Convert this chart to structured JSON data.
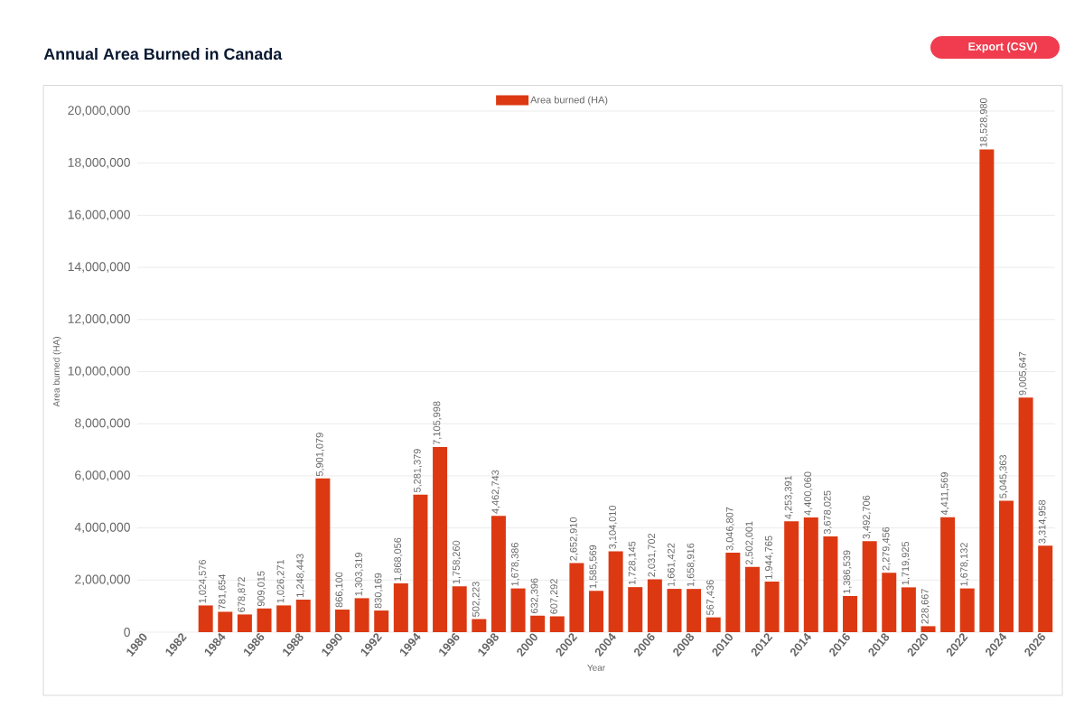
{
  "chart_data": {
    "type": "bar",
    "title": "Annual Area Burned in Canada",
    "xlabel": "Year",
    "ylabel": "Area burned (HA)",
    "annotations": [
      "Export (CSV)"
    ],
    "categories": [
      "1980",
      null,
      "1982",
      null,
      "1984",
      null,
      "1986",
      null,
      "1988",
      null,
      "1990",
      null,
      "1992",
      null,
      "1994",
      null,
      "1996",
      null,
      "1998",
      null,
      "2000",
      null,
      "2002",
      null,
      "2004",
      null,
      "2006",
      null,
      "2008",
      null,
      "2010",
      null,
      "2012",
      null,
      "2014",
      null,
      "2016",
      null,
      "2018",
      null,
      "2020",
      null,
      "2022",
      null,
      "2024",
      null,
      "2026"
    ],
    "series": [
      {
        "name": "Area burned (HA)",
        "color": "#dc3912",
        "values": [
          null,
          null,
          null,
          1024576,
          781654,
          678872,
          909015,
          1026271,
          1248443,
          5901079,
          866100,
          1303319,
          830169,
          1868056,
          5281379,
          7105998,
          1758260,
          502223,
          4462743,
          1678386,
          632396,
          607292,
          2652910,
          1585569,
          3104010,
          1728145,
          2031702,
          1661422,
          1658916,
          567436,
          3046807,
          2502001,
          1944765,
          4253391,
          4400060,
          3678025,
          1386539,
          3492706,
          2279456,
          1719925,
          228667,
          4411569,
          1678132,
          18528980,
          5045363,
          9005647,
          3314958
        ],
        "value_labels": [
          null,
          null,
          null,
          "1,024,576",
          "781,654",
          "678,872",
          "909,015",
          "1,026,271",
          "1,248,443",
          "5,901,079",
          "866,100",
          "1,303,319",
          "830,169",
          "1,868,056",
          "5,281,379",
          "7,105,998",
          "1,758,260",
          "502,223",
          "4,462,743",
          "1,678,386",
          "632,396",
          "607,292",
          "2,652,910",
          "1,585,569",
          "3,104,010",
          "1,728,145",
          "2,031,702",
          "1,661,422",
          "1,658,916",
          "567,436",
          "3,046,807",
          "2,502,001",
          "1,944,765",
          "4,253,391",
          "4,400,060",
          "3,678,025",
          "1,386,539",
          "3,492,706",
          "2,279,456",
          "1,719,925",
          "228,667",
          "4,411,569",
          "1,678,132",
          "18,528,980",
          "5,045,363",
          "9,005,647",
          "3,314,958"
        ]
      }
    ],
    "ylim": [
      0,
      20000000
    ],
    "yticks": [
      0,
      {
        "value": 2000000,
        "label": "2,000,000"
      },
      {
        "value": 4000000,
        "label": "4,000,000"
      },
      {
        "value": 6000000,
        "label": "6,000,000"
      },
      {
        "value": 8000000,
        "label": "8,000,000"
      },
      {
        "value": 10000000,
        "label": "10,000,000"
      },
      {
        "value": 12000000,
        "label": "12,000,000"
      },
      {
        "value": 14000000,
        "label": "14,000,000"
      },
      {
        "value": 16000000,
        "label": "16,000,000"
      },
      {
        "value": 18000000,
        "label": "18,000,000"
      },
      {
        "value": 20000000,
        "label": "20,000,000"
      }
    ],
    "grid": "y",
    "legend": "top"
  }
}
